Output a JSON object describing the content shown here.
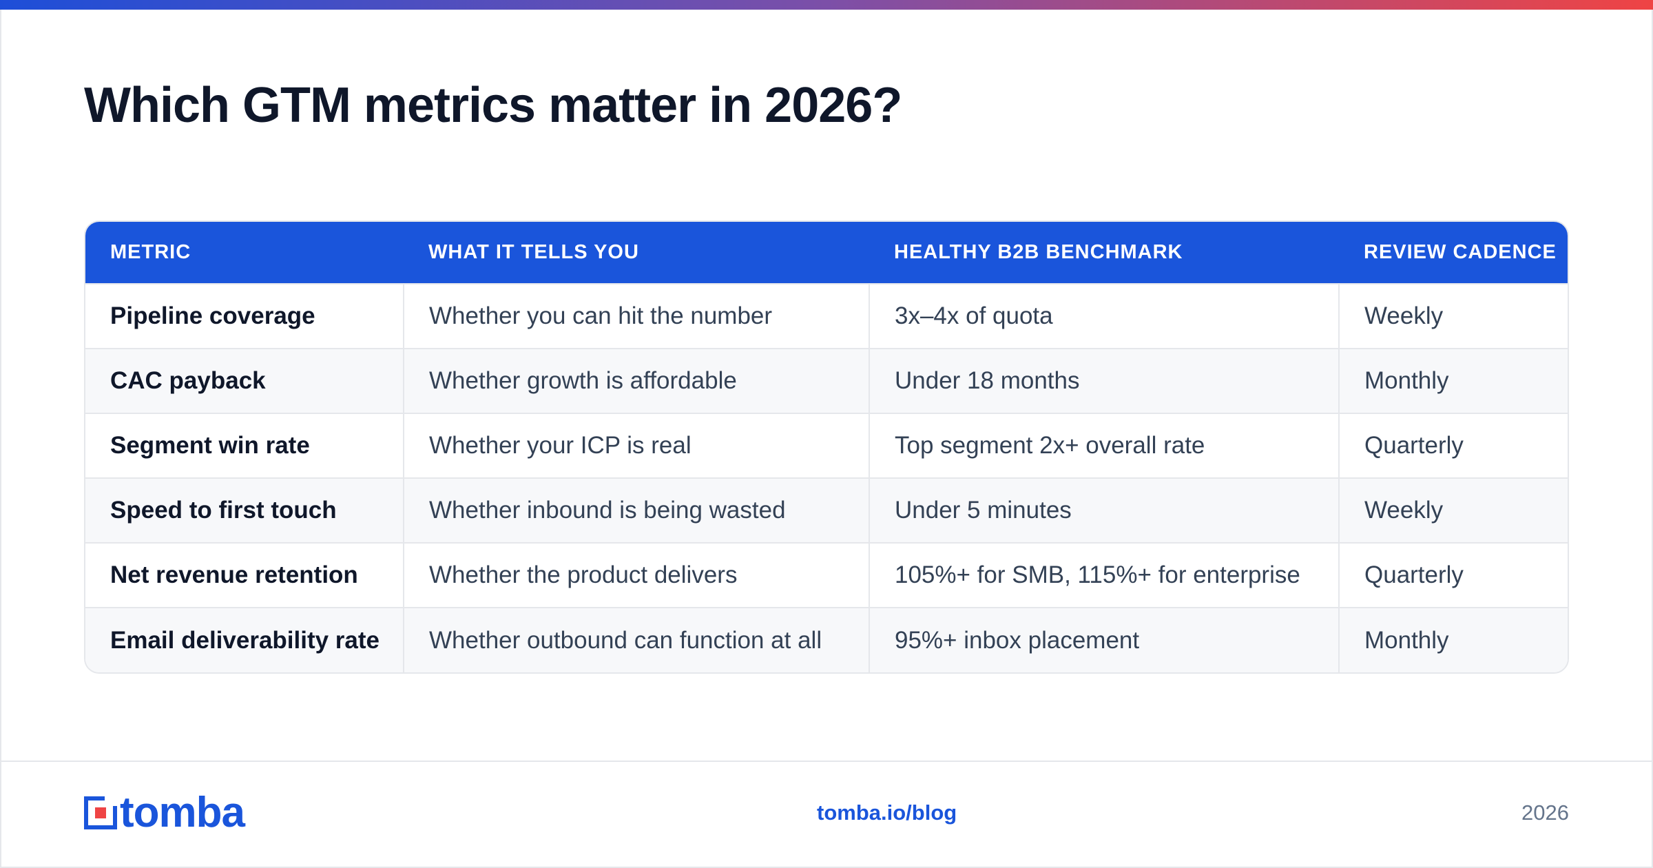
{
  "colors": {
    "accent": "#1a55db",
    "header_bg": "#1a55db",
    "title": "#0f172a",
    "muted": "#64748b",
    "gradient": [
      "#1d4ed8",
      "#7c4fa8",
      "#ef4444"
    ]
  },
  "page": {
    "title": "Which GTM metrics matter in 2026?"
  },
  "table": {
    "headers": [
      "METRIC",
      "WHAT IT TELLS YOU",
      "HEALTHY B2B BENCHMARK",
      "REVIEW CADENCE"
    ],
    "rows": [
      [
        "Pipeline coverage",
        "Whether you can hit the number",
        "3x–4x of quota",
        "Weekly"
      ],
      [
        "CAC payback",
        "Whether growth is affordable",
        "Under 18 months",
        "Monthly"
      ],
      [
        "Segment win rate",
        "Whether your ICP is real",
        "Top segment 2x+ overall rate",
        "Quarterly"
      ],
      [
        "Speed to first touch",
        "Whether inbound is being wasted",
        "Under 5 minutes",
        "Weekly"
      ],
      [
        "Net revenue retention",
        "Whether the product delivers",
        "105%+ for SMB, 115%+ for enterprise",
        "Quarterly"
      ],
      [
        "Email deliverability rate",
        "Whether outbound can function at all",
        "95%+ inbox placement",
        "Monthly"
      ]
    ]
  },
  "footer": {
    "logo_text": "tomba",
    "logo_icon": "tomba-logo-icon",
    "link": "tomba.io/blog",
    "year": "2026"
  }
}
